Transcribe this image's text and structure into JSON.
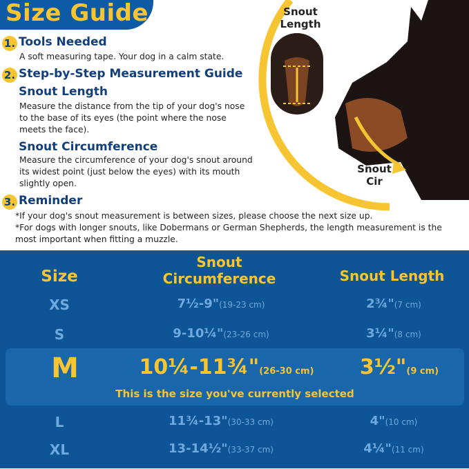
{
  "header": {
    "title": "Size Guide"
  },
  "illustration": {
    "snout_length_label": "Snout Length",
    "snout_cir_label": "Snout Cir"
  },
  "sections": [
    {
      "number": "1.",
      "title": "Tools Needed",
      "body": "A soft measuring tape. Your dog in a calm state."
    },
    {
      "number": "2.",
      "title": "Step-by-Step Measurement Guide",
      "sub": [
        {
          "title": "Snout Length",
          "body": "Measure the distance from the tip of your dog's nose to the base of its eyes (the point where the nose meets the face)."
        },
        {
          "title": "Snout Circumference",
          "body": "Measure the circumference of your dog's snout around its widest point (just below the eyes) with its mouth slightly open."
        }
      ]
    },
    {
      "number": "3.",
      "title": "Reminder",
      "notes": [
        "*If your dog's snout measurement is between sizes, please choose the next size up.",
        "*For dogs with longer snouts, like Dobermans or German Shepherds, the length measurement is the most important when fitting a muzzle."
      ]
    }
  ],
  "table": {
    "headers": {
      "size": "Size",
      "circ_line1": "Snout",
      "circ_line2": "Circumference",
      "length": "Snout Length"
    },
    "rows": [
      {
        "size": "XS",
        "circ": "7½-9\"",
        "circ_cm": "(19-23 cm)",
        "len": "2¾\"",
        "len_cm": "(7 cm)"
      },
      {
        "size": "S",
        "circ": "9-10¼\"",
        "circ_cm": "(23-26 cm)",
        "len": "3¼\"",
        "len_cm": "(8 cm)"
      },
      {
        "size": "M",
        "circ": "10¼-11¾\"",
        "circ_cm": "(26-30 cm)",
        "len": "3½\"",
        "len_cm": "(9 cm)"
      },
      {
        "size": "L",
        "circ": "11¾-13\"",
        "circ_cm": "(30-33 cm)",
        "len": "4\"",
        "len_cm": "(10 cm)"
      },
      {
        "size": "XL",
        "circ": "13-14½\"",
        "circ_cm": "(33-37 cm)",
        "len": "4¼\"",
        "len_cm": "(11 cm)"
      }
    ],
    "selected_message": "This is the size you've currently selected"
  },
  "colors": {
    "brand_blue": "#0d5597",
    "accent_yellow": "#f7c531",
    "heading_navy": "#123f7a",
    "value_light_blue": "#6ea9df"
  }
}
